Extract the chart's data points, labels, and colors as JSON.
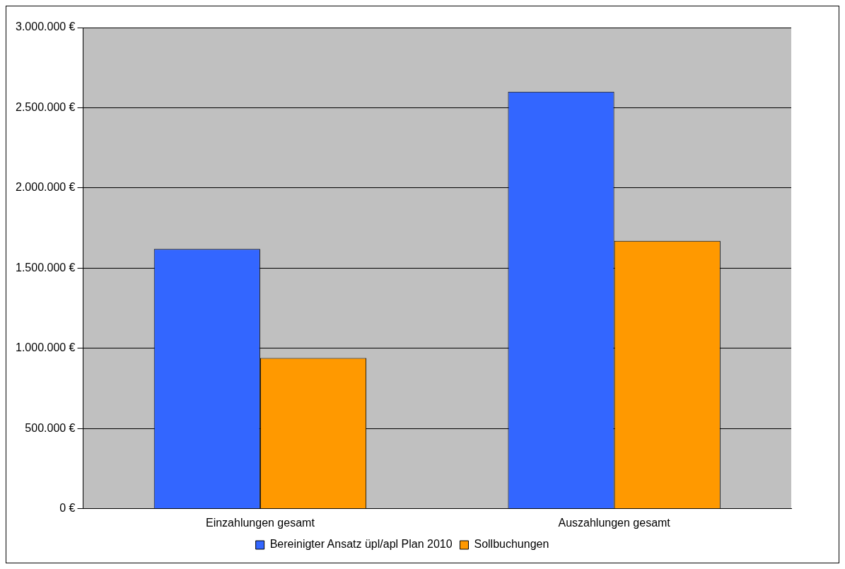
{
  "chart_data": {
    "type": "bar",
    "categories": [
      "Einzahlungen gesamt",
      "Auszahlungen gesamt"
    ],
    "series": [
      {
        "name": "Bereinigter Ansatz üpl/apl Plan 2010",
        "color": "#3366ff",
        "values": [
          1620000,
          2600000
        ]
      },
      {
        "name": "Sollbuchungen",
        "color": "#ff9900",
        "values": [
          940000,
          1670000
        ]
      }
    ],
    "ylim": [
      0,
      3000000
    ],
    "yticks": [
      {
        "value": 0,
        "label": "0 €"
      },
      {
        "value": 500000,
        "label": "500.000 €"
      },
      {
        "value": 1000000,
        "label": "1.000.000 €"
      },
      {
        "value": 1500000,
        "label": "1.500.000 €"
      },
      {
        "value": 2000000,
        "label": "2.000.000 €"
      },
      {
        "value": 2500000,
        "label": "2.500.000 €"
      },
      {
        "value": 3000000,
        "label": "3.000.000 €"
      }
    ],
    "grid": "y",
    "legend": "bottom"
  }
}
